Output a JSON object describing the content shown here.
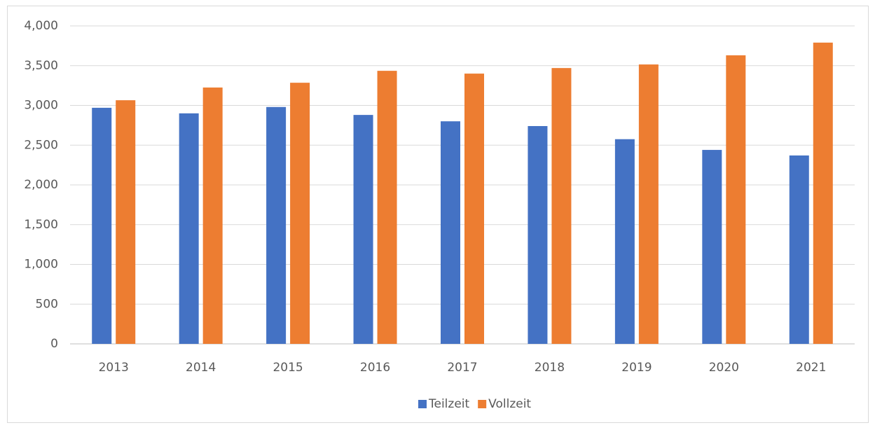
{
  "chart_data": {
    "type": "bar",
    "categories": [
      "2013",
      "2014",
      "2015",
      "2016",
      "2017",
      "2018",
      "2019",
      "2020",
      "2021"
    ],
    "series": [
      {
        "name": "Teilzeit",
        "color": "#4472c4",
        "values": [
          2970,
          2900,
          2980,
          2880,
          2800,
          2740,
          2575,
          2440,
          2370
        ]
      },
      {
        "name": "Vollzeit",
        "color": "#ed7d31",
        "values": [
          3065,
          3225,
          3285,
          3435,
          3400,
          3470,
          3515,
          3630,
          3790
        ]
      }
    ],
    "ylim": [
      0,
      4000
    ],
    "yticks": [
      0,
      500,
      {
        "value": 1000,
        "label": "1,000"
      },
      {
        "value": 1500,
        "label": "1,500"
      },
      {
        "value": 2000,
        "label": "2,000"
      },
      {
        "value": 2500,
        "label": "2,500"
      },
      {
        "value": 3000,
        "label": "3,000"
      },
      {
        "value": 3500,
        "label": "3,500"
      },
      {
        "value": 4000,
        "label": "4,000"
      }
    ],
    "grid": true,
    "legend": "bottom"
  }
}
